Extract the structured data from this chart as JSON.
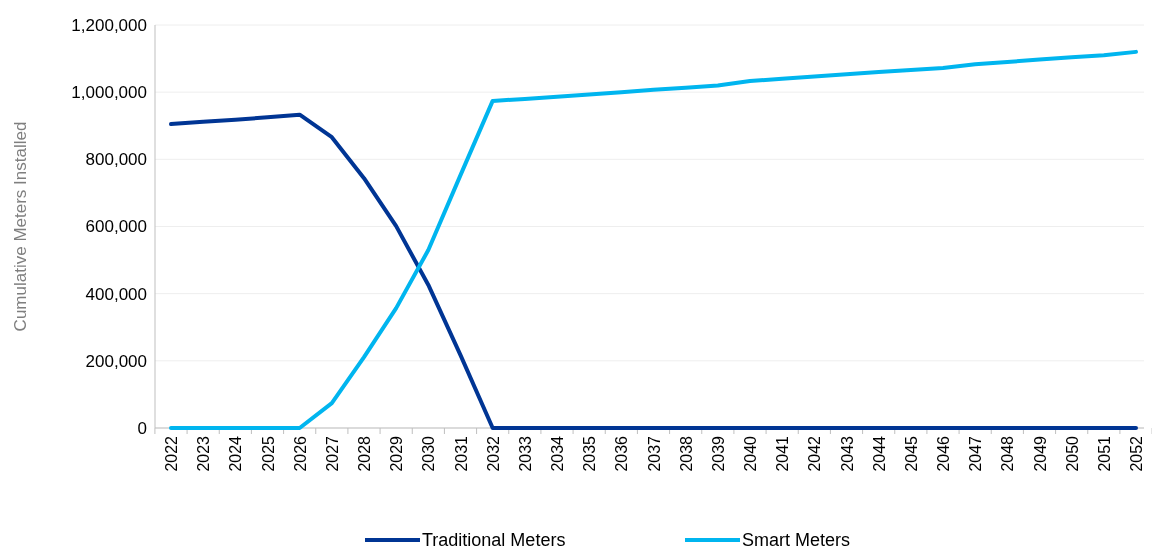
{
  "chart_data": {
    "type": "line",
    "ylabel": "Cumulative Meters Installed",
    "categories": [
      "2022",
      "2023",
      "2024",
      "2025",
      "2026",
      "2027",
      "2028",
      "2029",
      "2030",
      "2031",
      "2032",
      "2033",
      "2034",
      "2035",
      "2036",
      "2037",
      "2038",
      "2039",
      "2040",
      "2041",
      "2042",
      "2043",
      "2044",
      "2045",
      "2046",
      "2047",
      "2048",
      "2049",
      "2050",
      "2051",
      "2052"
    ],
    "series": [
      {
        "name": "Traditional Meters",
        "color": "#003594",
        "values": [
          905000,
          912000,
          918000,
          925000,
          933000,
          866000,
          744000,
          601000,
          426000,
          217000,
          0,
          0,
          0,
          0,
          0,
          0,
          0,
          0,
          0,
          0,
          0,
          0,
          0,
          0,
          0,
          0,
          0,
          0,
          0,
          0,
          0
        ]
      },
      {
        "name": "Smart Meters",
        "color": "#00b5ef",
        "values": [
          0,
          0,
          0,
          0,
          0,
          74000,
          211000,
          357000,
          530000,
          753000,
          974000,
          980000,
          986000,
          993000,
          1000000,
          1007000,
          1013000,
          1020000,
          1033000,
          1040000,
          1047000,
          1053000,
          1060000,
          1066000,
          1072000,
          1083000,
          1090000,
          1097000,
          1104000,
          1110000,
          1120000
        ]
      }
    ],
    "ylim": [
      0,
      1200000
    ],
    "yticks": [
      {
        "value": 0,
        "label": "0"
      },
      {
        "value": 200000,
        "label": "200,000"
      },
      {
        "value": 400000,
        "label": "400,000"
      },
      {
        "value": 600000,
        "label": "600,000"
      },
      {
        "value": 800000,
        "label": "800,000"
      },
      {
        "value": 1000000,
        "label": "1,000,000"
      },
      {
        "value": 1200000,
        "label": "1,200,000"
      }
    ],
    "grid": "y",
    "legend": "bottom",
    "line_style": "solid",
    "marker": "none"
  }
}
